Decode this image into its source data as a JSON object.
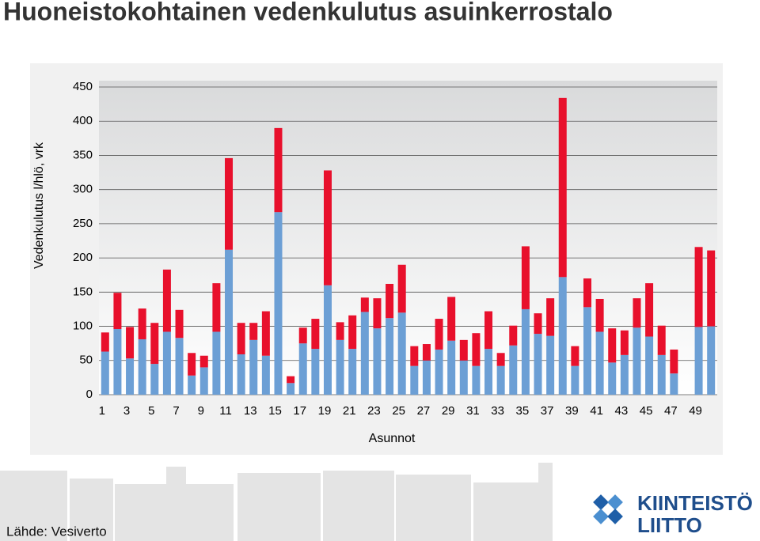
{
  "title": "Huoneistokohtainen vedenkulutus asuinkerrostalo",
  "source": "Lähde: Vesiverto",
  "logo": {
    "line1": "KIINTEISTÖ",
    "line2": "LIITTO"
  },
  "chart_data": {
    "type": "stacked_bar",
    "y_label": "Vedenkulutus l/hlö, vrk",
    "x_label": "Asunnot",
    "categories": [
      "1",
      null,
      "3",
      null,
      "5",
      null,
      "7",
      null,
      "9",
      null,
      "11",
      null,
      "13",
      null,
      "15",
      null,
      "17",
      null,
      "19",
      null,
      "21",
      null,
      "23",
      null,
      "25",
      null,
      "27",
      null,
      "29",
      null,
      "31",
      null,
      "33",
      null,
      "35",
      null,
      "37",
      null,
      "39",
      null,
      "41",
      null,
      "43",
      null,
      "45",
      null,
      "47",
      null,
      "49",
      null
    ],
    "series": [
      {
        "color": "#6c9fd5",
        "values": [
          63,
          96,
          53,
          81,
          45,
          92,
          83,
          28,
          40,
          92,
          212,
          59,
          80,
          57,
          267,
          17,
          75,
          67,
          160,
          80,
          67,
          121,
          97,
          112,
          120,
          42,
          50,
          66,
          79,
          50,
          42,
          67,
          42,
          72,
          125,
          89,
          86,
          172,
          42,
          128,
          92,
          47,
          58,
          98,
          85,
          58,
          31,
          null,
          99,
          100
        ]
      },
      {
        "color": "#e8102c",
        "values": [
          28,
          53,
          46,
          45,
          60,
          91,
          41,
          33,
          17,
          71,
          134,
          46,
          25,
          65,
          123,
          10,
          23,
          44,
          168,
          26,
          49,
          21,
          44,
          50,
          70,
          29,
          24,
          45,
          64,
          30,
          48,
          55,
          19,
          29,
          92,
          30,
          55,
          262,
          29,
          42,
          48,
          50,
          36,
          43,
          78,
          43,
          35,
          null,
          117,
          111
        ]
      }
    ],
    "ylim": [
      0,
      450
    ],
    "yticks": [
      0,
      50,
      100,
      150,
      200,
      250,
      300,
      350,
      400,
      450
    ],
    "grid": true
  }
}
